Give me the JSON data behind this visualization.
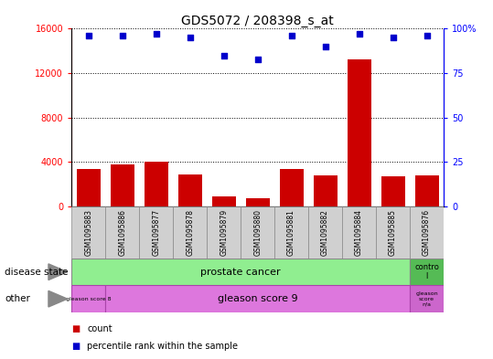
{
  "title": "GDS5072 / 208398_s_at",
  "samples": [
    "GSM1095883",
    "GSM1095886",
    "GSM1095877",
    "GSM1095878",
    "GSM1095879",
    "GSM1095880",
    "GSM1095881",
    "GSM1095882",
    "GSM1095884",
    "GSM1095885",
    "GSM1095876"
  ],
  "counts": [
    3400,
    3800,
    4050,
    2900,
    900,
    700,
    3400,
    2800,
    13200,
    2700,
    2800
  ],
  "percentile_ranks": [
    96,
    96,
    97,
    95,
    85,
    83,
    96,
    90,
    97,
    95,
    96
  ],
  "ylim_left": [
    0,
    16000
  ],
  "ylim_right": [
    0,
    100
  ],
  "yticks_left": [
    0,
    4000,
    8000,
    12000,
    16000
  ],
  "yticks_right": [
    0,
    25,
    50,
    75,
    100
  ],
  "ytick_labels_right": [
    "0",
    "25",
    "50",
    "75",
    "100%"
  ],
  "bar_color": "#cc0000",
  "dot_color": "#0000cc",
  "green_light": "#90ee90",
  "green_dark": "#55bb55",
  "magenta_light": "#dd77dd",
  "magenta_dark": "#cc66cc",
  "gray_label": "#c0c0c0",
  "background_color": "#ffffff"
}
